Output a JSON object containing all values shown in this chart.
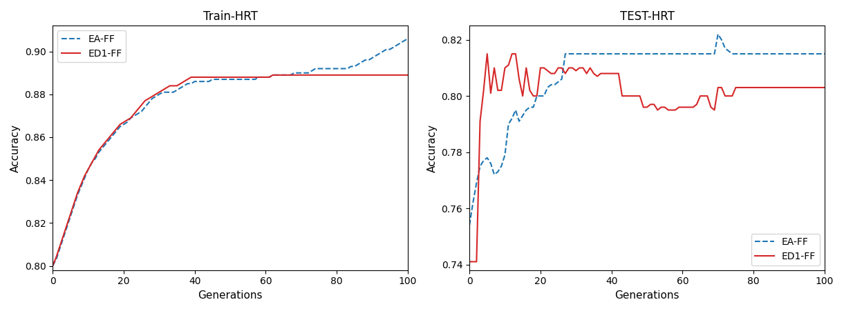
{
  "train_title": "Train-HRT",
  "test_title": "TEST-HRT",
  "xlabel": "Generations",
  "ylabel": "Accuracy",
  "ea_ff_color": "#1f77b4",
  "ed1_ff_color": "#d62728",
  "legend_ea": "EA-FF",
  "legend_ed1": "ED1-FF",
  "train_ea_x": [
    0,
    1,
    2,
    3,
    4,
    5,
    6,
    7,
    8,
    9,
    10,
    11,
    12,
    13,
    14,
    15,
    16,
    17,
    18,
    19,
    20,
    21,
    22,
    23,
    24,
    25,
    26,
    27,
    28,
    29,
    30,
    31,
    32,
    33,
    34,
    35,
    36,
    37,
    38,
    39,
    40,
    41,
    42,
    43,
    44,
    45,
    46,
    47,
    48,
    49,
    50,
    51,
    52,
    53,
    54,
    55,
    56,
    57,
    58,
    59,
    60,
    61,
    62,
    63,
    64,
    65,
    66,
    67,
    68,
    69,
    70,
    71,
    72,
    73,
    74,
    75,
    76,
    77,
    78,
    79,
    80,
    81,
    82,
    83,
    84,
    85,
    86,
    87,
    88,
    89,
    90,
    91,
    92,
    93,
    94,
    95,
    96,
    97,
    98,
    99,
    100
  ],
  "train_ea_y": [
    0.8,
    0.803,
    0.808,
    0.813,
    0.818,
    0.823,
    0.828,
    0.833,
    0.837,
    0.841,
    0.845,
    0.848,
    0.85,
    0.853,
    0.855,
    0.857,
    0.859,
    0.861,
    0.863,
    0.865,
    0.866,
    0.867,
    0.869,
    0.87,
    0.871,
    0.872,
    0.874,
    0.876,
    0.878,
    0.879,
    0.88,
    0.881,
    0.881,
    0.881,
    0.881,
    0.882,
    0.883,
    0.884,
    0.885,
    0.885,
    0.886,
    0.886,
    0.886,
    0.886,
    0.886,
    0.887,
    0.887,
    0.887,
    0.887,
    0.887,
    0.887,
    0.887,
    0.887,
    0.887,
    0.887,
    0.887,
    0.887,
    0.887,
    0.888,
    0.888,
    0.888,
    0.888,
    0.889,
    0.889,
    0.889,
    0.889,
    0.889,
    0.889,
    0.89,
    0.89,
    0.89,
    0.89,
    0.89,
    0.891,
    0.892,
    0.892,
    0.892,
    0.892,
    0.892,
    0.892,
    0.892,
    0.892,
    0.892,
    0.892,
    0.893,
    0.893,
    0.894,
    0.895,
    0.896,
    0.896,
    0.897,
    0.898,
    0.899,
    0.9,
    0.901,
    0.901,
    0.902,
    0.903,
    0.904,
    0.905,
    0.906
  ],
  "train_ed1_x": [
    0,
    1,
    2,
    3,
    4,
    5,
    6,
    7,
    8,
    9,
    10,
    11,
    12,
    13,
    14,
    15,
    16,
    17,
    18,
    19,
    20,
    21,
    22,
    23,
    24,
    25,
    26,
    27,
    28,
    29,
    30,
    31,
    32,
    33,
    34,
    35,
    36,
    37,
    38,
    39,
    40,
    41,
    42,
    43,
    44,
    45,
    46,
    47,
    48,
    49,
    50,
    51,
    52,
    53,
    54,
    55,
    56,
    57,
    58,
    59,
    60,
    61,
    62,
    63,
    64,
    65,
    66,
    67,
    68,
    69,
    70,
    71,
    72,
    73,
    74,
    75,
    76,
    77,
    78,
    79,
    80,
    81,
    82,
    83,
    84,
    85,
    86,
    87,
    88,
    89,
    90,
    91,
    92,
    93,
    94,
    95,
    96,
    97,
    98,
    99,
    100
  ],
  "train_ed1_y": [
    0.8,
    0.804,
    0.809,
    0.814,
    0.819,
    0.824,
    0.829,
    0.834,
    0.838,
    0.842,
    0.845,
    0.848,
    0.851,
    0.854,
    0.856,
    0.858,
    0.86,
    0.862,
    0.864,
    0.866,
    0.867,
    0.868,
    0.869,
    0.871,
    0.873,
    0.875,
    0.877,
    0.878,
    0.879,
    0.88,
    0.881,
    0.882,
    0.883,
    0.884,
    0.884,
    0.884,
    0.885,
    0.886,
    0.887,
    0.888,
    0.888,
    0.888,
    0.888,
    0.888,
    0.888,
    0.888,
    0.888,
    0.888,
    0.888,
    0.888,
    0.888,
    0.888,
    0.888,
    0.888,
    0.888,
    0.888,
    0.888,
    0.888,
    0.888,
    0.888,
    0.888,
    0.888,
    0.889,
    0.889,
    0.889,
    0.889,
    0.889,
    0.889,
    0.889,
    0.889,
    0.889,
    0.889,
    0.889,
    0.889,
    0.889,
    0.889,
    0.889,
    0.889,
    0.889,
    0.889,
    0.889,
    0.889,
    0.889,
    0.889,
    0.889,
    0.889,
    0.889,
    0.889,
    0.889,
    0.889,
    0.889,
    0.889,
    0.889,
    0.889,
    0.889,
    0.889,
    0.889,
    0.889,
    0.889,
    0.889,
    0.889
  ],
  "test_ea_x": [
    0,
    1,
    2,
    3,
    4,
    5,
    6,
    7,
    8,
    9,
    10,
    11,
    12,
    13,
    14,
    15,
    16,
    17,
    18,
    19,
    20,
    21,
    22,
    23,
    24,
    25,
    26,
    27,
    28,
    29,
    30,
    31,
    32,
    33,
    34,
    35,
    36,
    37,
    38,
    39,
    40,
    41,
    42,
    43,
    44,
    45,
    46,
    47,
    48,
    49,
    50,
    51,
    52,
    53,
    54,
    55,
    56,
    57,
    58,
    59,
    60,
    61,
    62,
    63,
    64,
    65,
    66,
    67,
    68,
    69,
    70,
    71,
    72,
    73,
    74,
    75,
    76,
    77,
    78,
    79,
    80,
    81,
    82,
    83,
    84,
    85,
    86,
    87,
    88,
    89,
    90,
    91,
    92,
    93,
    94,
    95,
    96,
    97,
    98,
    99,
    100
  ],
  "test_ea_y": [
    0.754,
    0.762,
    0.769,
    0.775,
    0.777,
    0.778,
    0.776,
    0.772,
    0.773,
    0.775,
    0.779,
    0.79,
    0.792,
    0.795,
    0.791,
    0.793,
    0.795,
    0.796,
    0.796,
    0.8,
    0.8,
    0.8,
    0.803,
    0.804,
    0.804,
    0.805,
    0.806,
    0.815,
    0.815,
    0.815,
    0.815,
    0.815,
    0.815,
    0.815,
    0.815,
    0.815,
    0.815,
    0.815,
    0.815,
    0.815,
    0.815,
    0.815,
    0.815,
    0.815,
    0.815,
    0.815,
    0.815,
    0.815,
    0.815,
    0.815,
    0.815,
    0.815,
    0.815,
    0.815,
    0.815,
    0.815,
    0.815,
    0.815,
    0.815,
    0.815,
    0.815,
    0.815,
    0.815,
    0.815,
    0.815,
    0.815,
    0.815,
    0.815,
    0.815,
    0.815,
    0.822,
    0.82,
    0.817,
    0.816,
    0.815,
    0.815,
    0.815,
    0.815,
    0.815,
    0.815,
    0.815,
    0.815,
    0.815,
    0.815,
    0.815,
    0.815,
    0.815,
    0.815,
    0.815,
    0.815,
    0.815,
    0.815,
    0.815,
    0.815,
    0.815,
    0.815,
    0.815,
    0.815,
    0.815,
    0.815,
    0.815
  ],
  "test_ed1_x": [
    0,
    1,
    2,
    3,
    4,
    5,
    6,
    7,
    8,
    9,
    10,
    11,
    12,
    13,
    14,
    15,
    16,
    17,
    18,
    19,
    20,
    21,
    22,
    23,
    24,
    25,
    26,
    27,
    28,
    29,
    30,
    31,
    32,
    33,
    34,
    35,
    36,
    37,
    38,
    39,
    40,
    41,
    42,
    43,
    44,
    45,
    46,
    47,
    48,
    49,
    50,
    51,
    52,
    53,
    54,
    55,
    56,
    57,
    58,
    59,
    60,
    61,
    62,
    63,
    64,
    65,
    66,
    67,
    68,
    69,
    70,
    71,
    72,
    73,
    74,
    75,
    76,
    77,
    78,
    79,
    80,
    81,
    82,
    83,
    84,
    85,
    86,
    87,
    88,
    89,
    90,
    91,
    92,
    93,
    94,
    95,
    96,
    97,
    98,
    99,
    100
  ],
  "test_ed1_y": [
    0.741,
    0.741,
    0.741,
    0.791,
    0.802,
    0.815,
    0.801,
    0.81,
    0.802,
    0.802,
    0.81,
    0.811,
    0.815,
    0.815,
    0.806,
    0.8,
    0.81,
    0.802,
    0.8,
    0.8,
    0.81,
    0.81,
    0.809,
    0.808,
    0.808,
    0.81,
    0.81,
    0.808,
    0.81,
    0.81,
    0.809,
    0.81,
    0.81,
    0.808,
    0.81,
    0.808,
    0.807,
    0.808,
    0.808,
    0.808,
    0.808,
    0.808,
    0.808,
    0.8,
    0.8,
    0.8,
    0.8,
    0.8,
    0.8,
    0.796,
    0.796,
    0.797,
    0.797,
    0.795,
    0.796,
    0.796,
    0.795,
    0.795,
    0.795,
    0.796,
    0.796,
    0.796,
    0.796,
    0.796,
    0.797,
    0.8,
    0.8,
    0.8,
    0.796,
    0.795,
    0.803,
    0.803,
    0.8,
    0.8,
    0.8,
    0.803,
    0.803,
    0.803,
    0.803,
    0.803,
    0.803,
    0.803,
    0.803,
    0.803,
    0.803,
    0.803,
    0.803,
    0.803,
    0.803,
    0.803,
    0.803,
    0.803,
    0.803,
    0.803,
    0.803,
    0.803,
    0.803,
    0.803,
    0.803,
    0.803,
    0.803
  ],
  "train_ylim": [
    0.798,
    0.912
  ],
  "test_ylim": [
    0.738,
    0.825
  ],
  "train_yticks": [
    0.8,
    0.82,
    0.84,
    0.86,
    0.88,
    0.9
  ],
  "test_yticks": [
    0.74,
    0.76,
    0.78,
    0.8,
    0.82
  ],
  "xlim": [
    0,
    100
  ]
}
